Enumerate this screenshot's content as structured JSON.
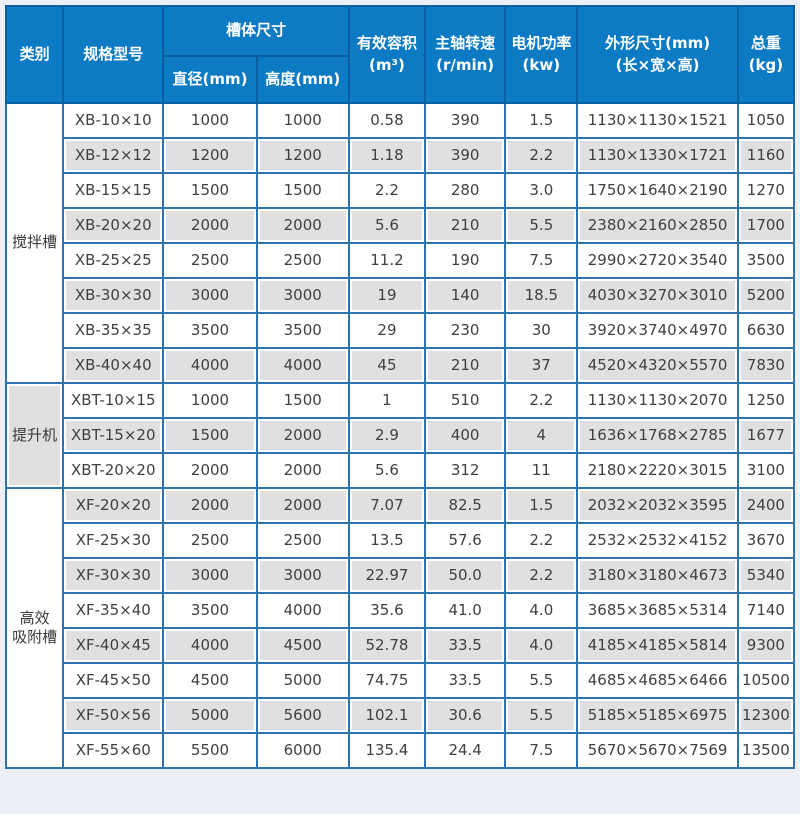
{
  "colors": {
    "header_bg": "#0d7ac4",
    "header_border": "#0a5fa0",
    "body_border": "#2e73ad",
    "outer_border": "#1a5c96",
    "row_alt_bg": "#e0e0e0",
    "text": "#404040",
    "page_bg": "#ecf0f6"
  },
  "table": {
    "headers": {
      "category": "类别",
      "model": "规格型号",
      "tank_size_group": "槽体尺寸",
      "diameter": "直径(mm)",
      "height": "高度(mm)",
      "volume": "有效容积\n(m³)",
      "speed": "主轴转速\n(r/min)",
      "power": "电机功率\n(kw)",
      "dimensions": "外形尺寸(mm)\n(长×宽×高)",
      "weight": "总重\n(kg)"
    },
    "groups": [
      {
        "category": "搅拌槽",
        "category_shaded": false,
        "rows": [
          [
            "XB-10×10",
            "1000",
            "1000",
            "0.58",
            "390",
            "1.5",
            "1130×1130×1521",
            "1050"
          ],
          [
            "XB-12×12",
            "1200",
            "1200",
            "1.18",
            "390",
            "2.2",
            "1130×1330×1721",
            "1160"
          ],
          [
            "XB-15×15",
            "1500",
            "1500",
            "2.2",
            "280",
            "3.0",
            "1750×1640×2190",
            "1270"
          ],
          [
            "XB-20×20",
            "2000",
            "2000",
            "5.6",
            "210",
            "5.5",
            "2380×2160×2850",
            "1700"
          ],
          [
            "XB-25×25",
            "2500",
            "2500",
            "11.2",
            "190",
            "7.5",
            "2990×2720×3540",
            "3500"
          ],
          [
            "XB-30×30",
            "3000",
            "3000",
            "19",
            "140",
            "18.5",
            "4030×3270×3010",
            "5200"
          ],
          [
            "XB-35×35",
            "3500",
            "3500",
            "29",
            "230",
            "30",
            "3920×3740×4970",
            "6630"
          ],
          [
            "XB-40×40",
            "4000",
            "4000",
            "45",
            "210",
            "37",
            "4520×4320×5570",
            "7830"
          ]
        ]
      },
      {
        "category": "提升机",
        "category_shaded": true,
        "rows": [
          [
            "XBT-10×15",
            "1000",
            "1500",
            "1",
            "510",
            "2.2",
            "1130×1130×2070",
            "1250"
          ],
          [
            "XBT-15×20",
            "1500",
            "2000",
            "2.9",
            "400",
            "4",
            "1636×1768×2785",
            "1677"
          ],
          [
            "XBT-20×20",
            "2000",
            "2000",
            "5.6",
            "312",
            "11",
            "2180×2220×3015",
            "3100"
          ]
        ]
      },
      {
        "category": "高效\n吸附槽",
        "category_shaded": false,
        "rows": [
          [
            "XF-20×20",
            "2000",
            "2000",
            "7.07",
            "82.5",
            "1.5",
            "2032×2032×3595",
            "2400"
          ],
          [
            "XF-25×30",
            "2500",
            "2500",
            "13.5",
            "57.6",
            "2.2",
            "2532×2532×4152",
            "3670"
          ],
          [
            "XF-30×30",
            "3000",
            "3000",
            "22.97",
            "50.0",
            "2.2",
            "3180×3180×4673",
            "5340"
          ],
          [
            "XF-35×40",
            "3500",
            "4000",
            "35.6",
            "41.0",
            "4.0",
            "3685×3685×5314",
            "7140"
          ],
          [
            "XF-40×45",
            "4000",
            "4500",
            "52.78",
            "33.5",
            "4.0",
            "4185×4185×5814",
            "9300"
          ],
          [
            "XF-45×50",
            "4500",
            "5000",
            "74.75",
            "33.5",
            "5.5",
            "4685×4685×6466",
            "10500"
          ],
          [
            "XF-50×56",
            "5000",
            "5600",
            "102.1",
            "30.6",
            "5.5",
            "5185×5185×6975",
            "12300"
          ],
          [
            "XF-55×60",
            "5500",
            "6000",
            "135.4",
            "24.4",
            "7.5",
            "5670×5670×7569",
            "13500"
          ]
        ]
      }
    ]
  }
}
